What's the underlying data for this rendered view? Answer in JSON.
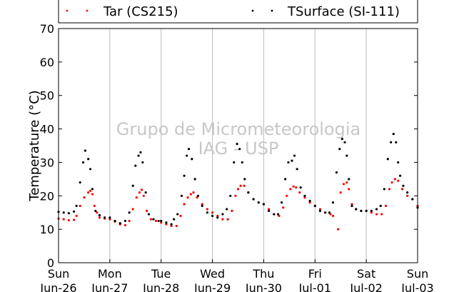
{
  "watermark": {
    "line1": "Grupo de Micrometeorologia",
    "line2": "IAG - USP"
  },
  "chart_data": {
    "type": "scatter",
    "ylabel": "Temperature (°C)",
    "ylim": [
      0,
      70
    ],
    "yticks": [
      0,
      10,
      20,
      30,
      40,
      50,
      60,
      70
    ],
    "x_range_days": [
      0,
      7
    ],
    "x_ticks": [
      {
        "day": "Sun",
        "date": "Jun-26"
      },
      {
        "day": "Mon",
        "date": "Jun-27"
      },
      {
        "day": "Tue",
        "date": "Jun-28"
      },
      {
        "day": "Wed",
        "date": "Jun-29"
      },
      {
        "day": "Thu",
        "date": "Jun-30"
      },
      {
        "day": "Fri",
        "date": "Jul-01"
      },
      {
        "day": "Sat",
        "date": "Jul-02"
      },
      {
        "day": "Sun",
        "date": "Jul-03"
      }
    ],
    "grid": true,
    "legend_placement": "top",
    "series": [
      {
        "name": "Tar (CS215)",
        "color": "#ff0000",
        "points": [
          [
            0.0,
            13.2
          ],
          [
            0.1,
            13.0
          ],
          [
            0.2,
            12.7
          ],
          [
            0.3,
            12.8
          ],
          [
            0.35,
            14.0
          ],
          [
            0.42,
            17.0
          ],
          [
            0.5,
            19.5
          ],
          [
            0.58,
            21.0
          ],
          [
            0.62,
            21.5
          ],
          [
            0.66,
            20.5
          ],
          [
            0.7,
            17.0
          ],
          [
            0.75,
            15.0
          ],
          [
            0.8,
            13.5
          ],
          [
            0.9,
            13.2
          ],
          [
            1.0,
            13.0
          ],
          [
            1.1,
            12.3
          ],
          [
            1.2,
            11.5
          ],
          [
            1.3,
            11.2
          ],
          [
            1.38,
            12.5
          ],
          [
            1.45,
            16.0
          ],
          [
            1.52,
            19.5
          ],
          [
            1.58,
            21.0
          ],
          [
            1.62,
            21.8
          ],
          [
            1.66,
            20.0
          ],
          [
            1.72,
            15.5
          ],
          [
            1.8,
            13.0
          ],
          [
            1.9,
            12.5
          ],
          [
            2.0,
            12.0
          ],
          [
            2.1,
            11.5
          ],
          [
            2.2,
            11.0
          ],
          [
            2.3,
            11.0
          ],
          [
            2.38,
            14.0
          ],
          [
            2.45,
            17.5
          ],
          [
            2.52,
            19.5
          ],
          [
            2.58,
            20.5
          ],
          [
            2.63,
            21.0
          ],
          [
            2.7,
            19.5
          ],
          [
            2.8,
            17.5
          ],
          [
            2.9,
            16.0
          ],
          [
            3.0,
            15.0
          ],
          [
            3.1,
            14.0
          ],
          [
            3.2,
            13.0
          ],
          [
            3.3,
            13.0
          ],
          [
            3.38,
            15.5
          ],
          [
            3.45,
            20.0
          ],
          [
            3.5,
            22.0
          ],
          [
            3.55,
            23.0
          ],
          [
            3.62,
            23.0
          ],
          [
            3.7,
            21.0
          ],
          [
            3.8,
            19.0
          ],
          [
            3.9,
            18.0
          ],
          [
            4.0,
            17.5
          ],
          [
            4.1,
            16.0
          ],
          [
            4.2,
            14.5
          ],
          [
            4.3,
            14.0
          ],
          [
            4.38,
            16.5
          ],
          [
            4.45,
            20.0
          ],
          [
            4.52,
            22.0
          ],
          [
            4.58,
            22.8
          ],
          [
            4.63,
            22.5
          ],
          [
            4.7,
            21.0
          ],
          [
            4.8,
            19.5
          ],
          [
            4.9,
            18.0
          ],
          [
            5.0,
            17.0
          ],
          [
            5.1,
            16.0
          ],
          [
            5.2,
            15.0
          ],
          [
            5.3,
            14.5
          ],
          [
            5.35,
            14.0
          ],
          [
            5.45,
            10.0
          ],
          [
            5.5,
            21.0
          ],
          [
            5.56,
            23.5
          ],
          [
            5.62,
            24.0
          ],
          [
            5.66,
            22.0
          ],
          [
            5.72,
            17.5
          ],
          [
            5.8,
            16.0
          ],
          [
            5.9,
            15.5
          ],
          [
            6.0,
            15.5
          ],
          [
            6.1,
            15.0
          ],
          [
            6.2,
            14.5
          ],
          [
            6.3,
            14.5
          ],
          [
            6.38,
            17.0
          ],
          [
            6.45,
            22.0
          ],
          [
            6.5,
            24.0
          ],
          [
            6.56,
            25.0
          ],
          [
            6.62,
            24.5
          ],
          [
            6.7,
            22.0
          ],
          [
            6.8,
            20.0
          ],
          [
            6.9,
            19.0
          ],
          [
            7.0,
            17.0
          ]
        ]
      },
      {
        "name": "TSurface (SI-111)",
        "color": "#000000",
        "points": [
          [
            0.0,
            15.2
          ],
          [
            0.1,
            15.0
          ],
          [
            0.2,
            14.8
          ],
          [
            0.3,
            15.3
          ],
          [
            0.35,
            17.0
          ],
          [
            0.42,
            24.0
          ],
          [
            0.48,
            30.0
          ],
          [
            0.52,
            33.5
          ],
          [
            0.58,
            31.0
          ],
          [
            0.62,
            28.0
          ],
          [
            0.66,
            22.0
          ],
          [
            0.72,
            15.5
          ],
          [
            0.8,
            14.2
          ],
          [
            0.9,
            13.5
          ],
          [
            1.0,
            13.5
          ],
          [
            1.1,
            12.5
          ],
          [
            1.2,
            11.8
          ],
          [
            1.3,
            12.5
          ],
          [
            1.38,
            15.0
          ],
          [
            1.45,
            23.0
          ],
          [
            1.5,
            29.0
          ],
          [
            1.56,
            32.0
          ],
          [
            1.6,
            33.0
          ],
          [
            1.64,
            30.0
          ],
          [
            1.7,
            21.0
          ],
          [
            1.76,
            14.5
          ],
          [
            1.85,
            13.0
          ],
          [
            1.95,
            12.5
          ],
          [
            2.0,
            12.5
          ],
          [
            2.1,
            12.0
          ],
          [
            2.2,
            11.5
          ],
          [
            2.25,
            13.0
          ],
          [
            2.32,
            14.5
          ],
          [
            2.4,
            20.0
          ],
          [
            2.45,
            26.0
          ],
          [
            2.5,
            32.0
          ],
          [
            2.54,
            34.0
          ],
          [
            2.6,
            31.0
          ],
          [
            2.66,
            25.0
          ],
          [
            2.72,
            20.0
          ],
          [
            2.8,
            17.0
          ],
          [
            2.9,
            15.0
          ],
          [
            3.0,
            14.0
          ],
          [
            3.1,
            13.5
          ],
          [
            3.2,
            14.5
          ],
          [
            3.28,
            16.0
          ],
          [
            3.35,
            20.0
          ],
          [
            3.42,
            30.0
          ],
          [
            3.48,
            35.5
          ],
          [
            3.53,
            34.0
          ],
          [
            3.58,
            30.0
          ],
          [
            3.63,
            25.0
          ],
          [
            3.7,
            21.0
          ],
          [
            3.8,
            19.0
          ],
          [
            3.9,
            18.0
          ],
          [
            4.0,
            17.5
          ],
          [
            4.1,
            15.5
          ],
          [
            4.2,
            14.5
          ],
          [
            4.28,
            14.5
          ],
          [
            4.35,
            18.0
          ],
          [
            4.42,
            25.0
          ],
          [
            4.48,
            30.0
          ],
          [
            4.55,
            30.5
          ],
          [
            4.6,
            32.0
          ],
          [
            4.65,
            28.0
          ],
          [
            4.72,
            22.5
          ],
          [
            4.8,
            20.0
          ],
          [
            4.9,
            18.5
          ],
          [
            5.0,
            17.0
          ],
          [
            5.1,
            15.5
          ],
          [
            5.2,
            15.0
          ],
          [
            5.28,
            15.0
          ],
          [
            5.35,
            18.0
          ],
          [
            5.42,
            27.0
          ],
          [
            5.48,
            34.0
          ],
          [
            5.53,
            37.0
          ],
          [
            5.58,
            36.0
          ],
          [
            5.62,
            32.0
          ],
          [
            5.66,
            25.0
          ],
          [
            5.72,
            17.0
          ],
          [
            5.8,
            16.0
          ],
          [
            5.9,
            15.5
          ],
          [
            6.0,
            15.5
          ],
          [
            6.1,
            15.5
          ],
          [
            6.2,
            16.0
          ],
          [
            6.28,
            17.0
          ],
          [
            6.35,
            22.0
          ],
          [
            6.42,
            31.0
          ],
          [
            6.48,
            36.0
          ],
          [
            6.53,
            38.5
          ],
          [
            6.58,
            36.0
          ],
          [
            6.62,
            30.0
          ],
          [
            6.66,
            26.0
          ],
          [
            6.72,
            23.0
          ],
          [
            6.8,
            21.0
          ],
          [
            6.9,
            19.0
          ],
          [
            7.0,
            16.5
          ]
        ]
      }
    ]
  }
}
